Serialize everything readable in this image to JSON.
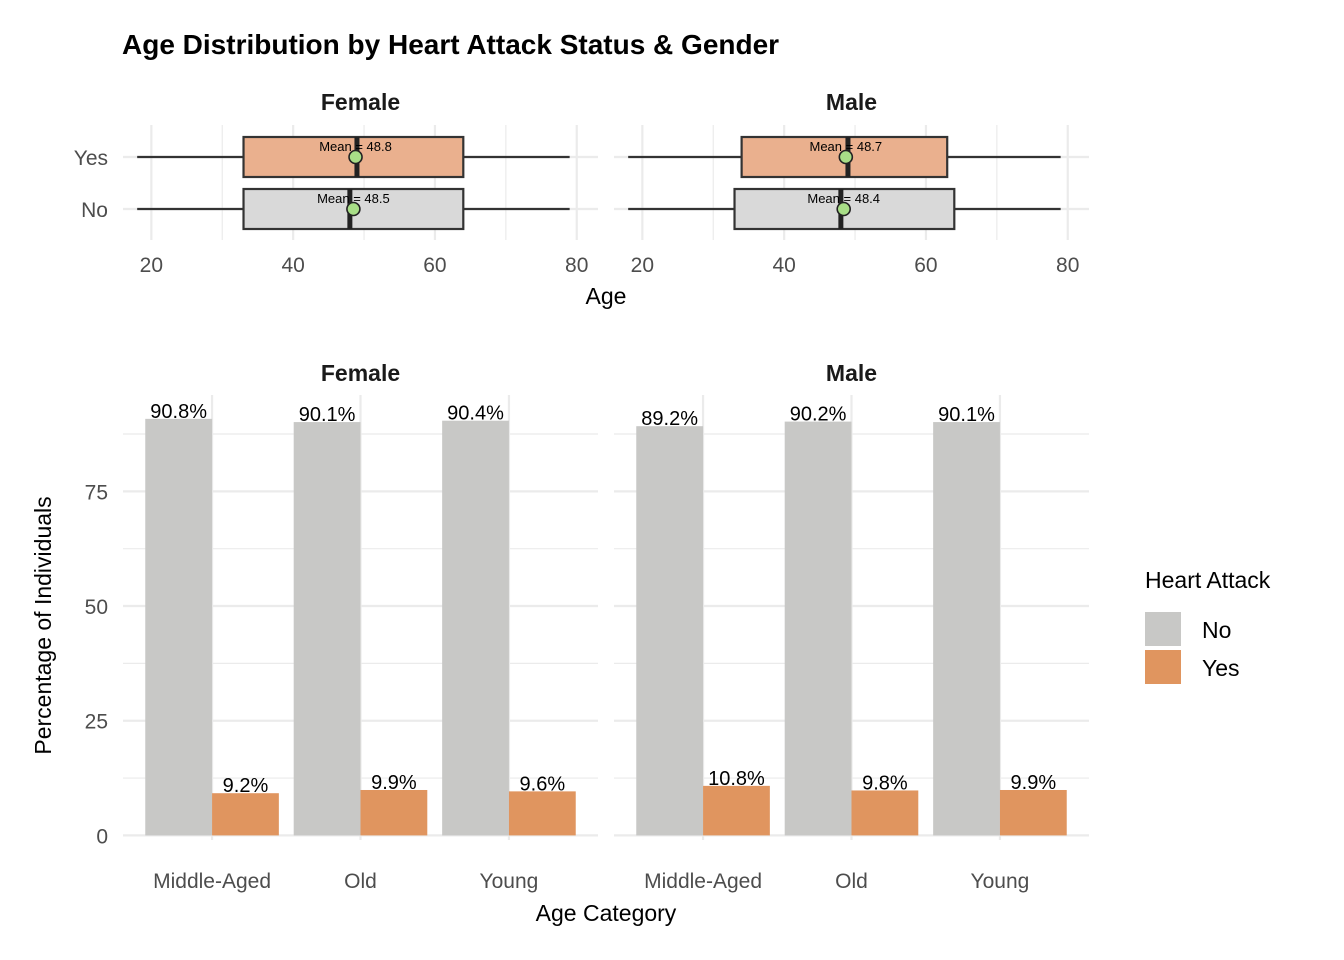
{
  "title": "Age Distribution by Heart Attack Status & Gender",
  "colors": {
    "no": "#C8C8C6",
    "yes": "#E0955F",
    "box_no": "#D9D9D9",
    "box_yes": "#EAB08E",
    "mean_point": "#A8DE87",
    "grid": "#EBEBEB"
  },
  "chart_data": [
    {
      "type": "boxplot",
      "facets": [
        "Female",
        "Male"
      ],
      "categories": [
        "No",
        "Yes"
      ],
      "xlabel": "Age",
      "xlim": [
        16,
        83
      ],
      "xticks": [
        20,
        40,
        60,
        80
      ],
      "grid": true,
      "boxes": {
        "Female": {
          "No": {
            "min": 18,
            "q1": 33,
            "median": 48,
            "q3": 64,
            "max": 79,
            "mean": 48.5,
            "mean_label": "Mean = 48.5"
          },
          "Yes": {
            "min": 18,
            "q1": 33,
            "median": 49,
            "q3": 64,
            "max": 79,
            "mean": 48.8,
            "mean_label": "Mean = 48.8"
          }
        },
        "Male": {
          "No": {
            "min": 18,
            "q1": 33,
            "median": 48,
            "q3": 64,
            "max": 79,
            "mean": 48.4,
            "mean_label": "Mean = 48.4"
          },
          "Yes": {
            "min": 18,
            "q1": 34,
            "median": 49,
            "q3": 63,
            "max": 79,
            "mean": 48.7,
            "mean_label": "Mean = 48.7"
          }
        }
      }
    },
    {
      "type": "bar",
      "facets": [
        "Female",
        "Male"
      ],
      "categories": [
        "Middle-Aged",
        "Old",
        "Young"
      ],
      "xlabel": "Age Category",
      "ylabel": "Percentage of Individuals",
      "ylim": [
        -1,
        96
      ],
      "yticks": [
        0,
        25,
        50,
        75
      ],
      "grid": true,
      "legend": {
        "title": "Heart Attack",
        "position": "right",
        "entries": [
          "No",
          "Yes"
        ]
      },
      "series": {
        "Female": [
          {
            "name": "No",
            "values": [
              90.8,
              90.1,
              90.4
            ],
            "labels": [
              "90.8%",
              "90.1%",
              "90.4%"
            ]
          },
          {
            "name": "Yes",
            "values": [
              9.2,
              9.9,
              9.6
            ],
            "labels": [
              "9.2%",
              "9.9%",
              "9.6%"
            ]
          }
        ],
        "Male": [
          {
            "name": "No",
            "values": [
              89.2,
              90.2,
              90.1
            ],
            "labels": [
              "89.2%",
              "90.2%",
              "90.1%"
            ]
          },
          {
            "name": "Yes",
            "values": [
              10.8,
              9.8,
              9.9
            ],
            "labels": [
              "10.8%",
              "9.8%",
              "9.9%"
            ]
          }
        ]
      }
    }
  ]
}
